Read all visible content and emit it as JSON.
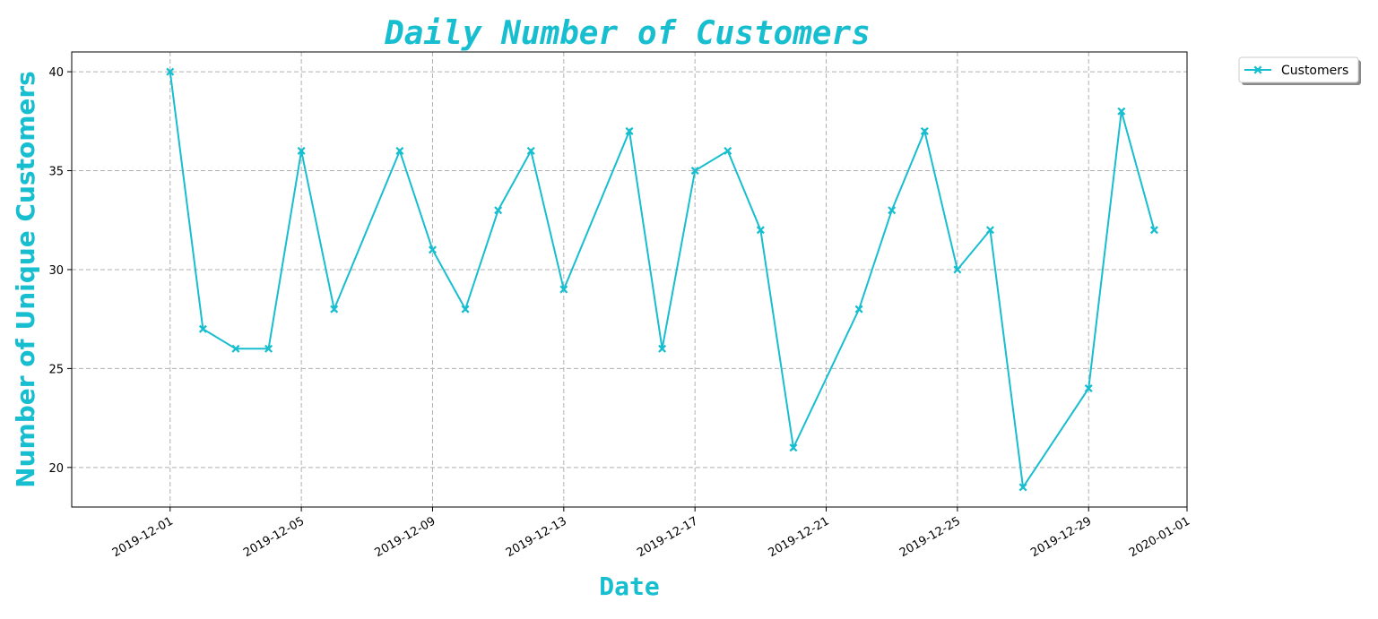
{
  "chart_data": {
    "type": "line",
    "title": "Daily Number of Customers",
    "xlabel": "Date",
    "ylabel": "Number of Unique Customers",
    "x": [
      "2019-12-01",
      "2019-12-02",
      "2019-12-03",
      "2019-12-04",
      "2019-12-05",
      "2019-12-06",
      "2019-12-08",
      "2019-12-09",
      "2019-12-10",
      "2019-12-11",
      "2019-12-12",
      "2019-12-13",
      "2019-12-15",
      "2019-12-16",
      "2019-12-17",
      "2019-12-18",
      "2019-12-19",
      "2019-12-20",
      "2019-12-22",
      "2019-12-23",
      "2019-12-24",
      "2019-12-25",
      "2019-12-26",
      "2019-12-27",
      "2019-12-29",
      "2019-12-30",
      "2019-12-31"
    ],
    "series": [
      {
        "name": "Customers",
        "values": [
          40,
          27,
          26,
          26,
          36,
          28,
          36,
          31,
          28,
          33,
          36,
          29,
          37,
          26,
          35,
          36,
          32,
          21,
          28,
          33,
          37,
          30,
          32,
          19,
          24,
          38,
          32
        ]
      }
    ],
    "x_ticks": [
      "2019-12-01",
      "2019-12-05",
      "2019-12-09",
      "2019-12-13",
      "2019-12-17",
      "2019-12-21",
      "2019-12-25",
      "2019-12-29",
      "2020-01-01"
    ],
    "y_ticks": [
      20,
      25,
      30,
      35,
      40
    ],
    "xlim": [
      "2019-11-28",
      "2020-01-01"
    ],
    "ylim": [
      18,
      41
    ],
    "grid": true,
    "legend_position": "outside top-right",
    "colors": {
      "series": "#17becf",
      "title": "#17becf",
      "grid": "#b0b0b0"
    },
    "marker": "x-filled"
  }
}
